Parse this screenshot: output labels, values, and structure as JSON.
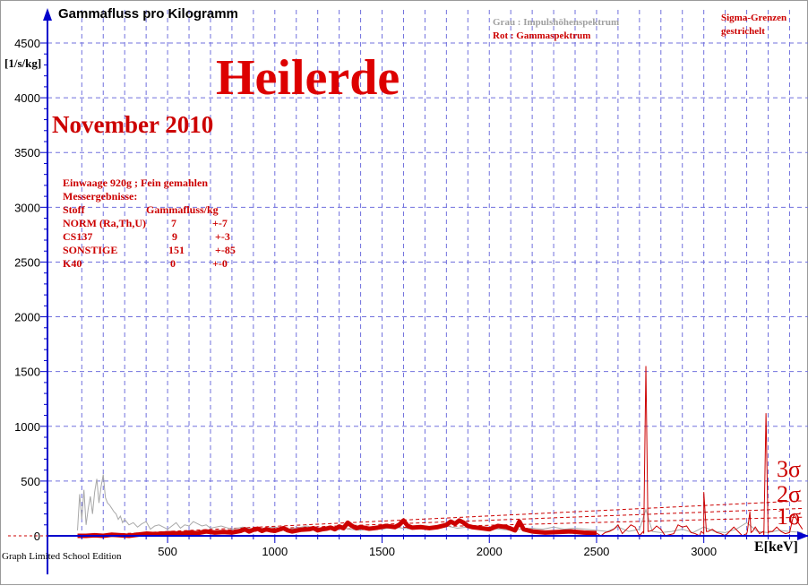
{
  "chart_data": {
    "type": "line",
    "title": "Gammafluss pro Kilogramm",
    "heading": "Heilerde",
    "subheading": "November 2010",
    "ylabel": "[1/s/kg]",
    "xlabel": "E[keV]",
    "xlim": [
      -60,
      3490
    ],
    "ylim": [
      -40,
      4600
    ],
    "x_ticks": [
      500,
      1000,
      1500,
      2000,
      2500,
      3000
    ],
    "y_ticks": [
      0,
      500,
      1000,
      1500,
      2000,
      2500,
      3000,
      3500,
      4000,
      4500
    ],
    "grid": true,
    "legend": {
      "gray": "Grau : Impulshöhenspektrum",
      "red": "Rot   : Gammaspektrum",
      "sigma_note_1": "Sigma-Grenzen",
      "sigma_note_2": "gestrichelt"
    },
    "colors": {
      "gamma": "#cc0000",
      "pulse": "#a8a8a8",
      "axis": "#0000cc",
      "grid": "#7070dd"
    },
    "info": {
      "line1": "Einwaage  920g  ; Fein gemahlen",
      "line2": "Messergebnisse:",
      "header": [
        "Stoff",
        "Gammafluss/kg"
      ],
      "rows": [
        [
          "NORM (Ra,Th,U)",
          "7",
          "+-7"
        ],
        [
          "CS137",
          "9",
          "+-3"
        ],
        [
          "SONSTIGE",
          "151",
          "+-85"
        ],
        [
          "K40",
          "0",
          "+-0"
        ]
      ]
    },
    "sigma_labels": [
      "3σ",
      "2σ",
      "1σ"
    ],
    "series": [
      {
        "name": "Rot   : Gammaspektrum",
        "x": [
          80,
          120,
          160,
          200,
          240,
          280,
          320,
          360,
          400,
          440,
          480,
          520,
          560,
          600,
          640,
          680,
          720,
          760,
          800,
          840,
          860,
          880,
          900,
          920,
          940,
          960,
          980,
          1000,
          1040,
          1060,
          1080,
          1120,
          1160,
          1180,
          1200,
          1220,
          1240,
          1260,
          1280,
          1300,
          1320,
          1340,
          1360,
          1380,
          1400,
          1440,
          1480,
          1520,
          1560,
          1580,
          1600,
          1620,
          1640,
          1680,
          1720,
          1760,
          1800,
          1820,
          1840,
          1860,
          1880,
          1900,
          1920,
          1960,
          2000,
          2040,
          2080,
          2120,
          2140,
          2160,
          2200,
          2260,
          2320,
          2380,
          2440,
          2500,
          2520,
          2540,
          2560,
          2580,
          2600,
          2620,
          2640,
          2660,
          2680,
          2700,
          2720,
          2740,
          2760,
          2780,
          2800,
          2820,
          2840,
          2860,
          2880,
          2900,
          2920,
          2940,
          2960,
          2980,
          3000,
          3020,
          3040,
          3060,
          3080,
          3100,
          3120,
          3140,
          3160,
          3180,
          3200,
          3220,
          3240,
          3260,
          3280,
          3300,
          3320,
          3340,
          3360,
          3380,
          3400,
          3420,
          3440,
          3460
        ],
        "y": [
          0,
          0,
          5,
          0,
          10,
          5,
          0,
          10,
          20,
          15,
          20,
          25,
          20,
          30,
          25,
          40,
          30,
          35,
          30,
          45,
          60,
          40,
          55,
          65,
          45,
          60,
          50,
          45,
          70,
          50,
          40,
          55,
          60,
          70,
          50,
          60,
          65,
          75,
          60,
          85,
          70,
          120,
          90,
          70,
          80,
          65,
          75,
          90,
          80,
          100,
          140,
          90,
          75,
          80,
          70,
          80,
          100,
          130,
          110,
          140,
          120,
          90,
          80,
          70,
          60,
          90,
          80,
          50,
          130,
          60,
          40,
          30,
          35,
          40,
          30,
          25,
          0,
          30,
          40,
          60,
          100,
          20,
          60,
          100,
          80,
          0,
          20,
          40,
          50,
          90,
          60,
          0,
          10,
          20,
          100,
          80,
          90,
          30,
          20,
          0,
          20,
          40,
          60,
          30,
          20,
          0,
          40,
          80,
          40,
          0,
          20,
          30,
          80,
          20,
          0,
          20,
          40,
          80,
          40,
          20,
          30,
          200,
          120,
          60
        ],
        "peaks": [
          [
            2730,
            1550
          ],
          [
            3000,
            400
          ],
          [
            3215,
            220
          ],
          [
            3290,
            1120
          ]
        ]
      },
      {
        "name": "Grau : Impulshöhenspektrum",
        "x": [
          80,
          90,
          100,
          110,
          120,
          130,
          140,
          150,
          160,
          170,
          180,
          190,
          200,
          210,
          220,
          230,
          240,
          250,
          260,
          270,
          280,
          290,
          300,
          320,
          340,
          360,
          380,
          400,
          420,
          440,
          460,
          480,
          500,
          520,
          540,
          560,
          580,
          600,
          620,
          640,
          660,
          680,
          700,
          750,
          800,
          850,
          900,
          950,
          1000,
          1050,
          1100,
          1150,
          1200,
          1250,
          1300,
          1350,
          1400,
          1450,
          1500,
          1550,
          1600,
          1650,
          1700,
          1750,
          1800,
          1850,
          1900,
          1950,
          2000,
          2050,
          2100,
          2150,
          2200,
          2250,
          2300,
          2350,
          2400,
          2450,
          2500,
          2550,
          2600,
          2650,
          2700,
          2730,
          2760,
          2800,
          2850,
          2900,
          2950,
          3000,
          3050,
          3100,
          3150,
          3200,
          3250,
          3300,
          3350,
          3400,
          3460
        ],
        "y": [
          50,
          380,
          150,
          420,
          100,
          250,
          360,
          200,
          400,
          520,
          300,
          450,
          560,
          350,
          300,
          280,
          250,
          220,
          200,
          150,
          180,
          120,
          150,
          100,
          120,
          80,
          110,
          130,
          60,
          90,
          100,
          80,
          60,
          90,
          120,
          70,
          100,
          90,
          130,
          110,
          90,
          100,
          70,
          90,
          60,
          80,
          60,
          70,
          80,
          60,
          70,
          90,
          60,
          70,
          80,
          60,
          50,
          70,
          60,
          80,
          70,
          60,
          80,
          70,
          90,
          70,
          80,
          60,
          70,
          60,
          50,
          60,
          70,
          60,
          80,
          60,
          70,
          60,
          50,
          40,
          80,
          40,
          60,
          240,
          40,
          30,
          40,
          60,
          30,
          80,
          40,
          30,
          60,
          120,
          40,
          30,
          50,
          40,
          30
        ],
        "peaks": []
      }
    ],
    "sigma_curves": [
      {
        "label": "1σ",
        "x": [
          80,
          3460
        ],
        "y": [
          0,
          170
        ]
      },
      {
        "label": "2σ",
        "x": [
          80,
          3460
        ],
        "y": [
          0,
          250
        ]
      },
      {
        "label": "3σ",
        "x": [
          80,
          3460
        ],
        "y": [
          0,
          320
        ]
      }
    ]
  }
}
